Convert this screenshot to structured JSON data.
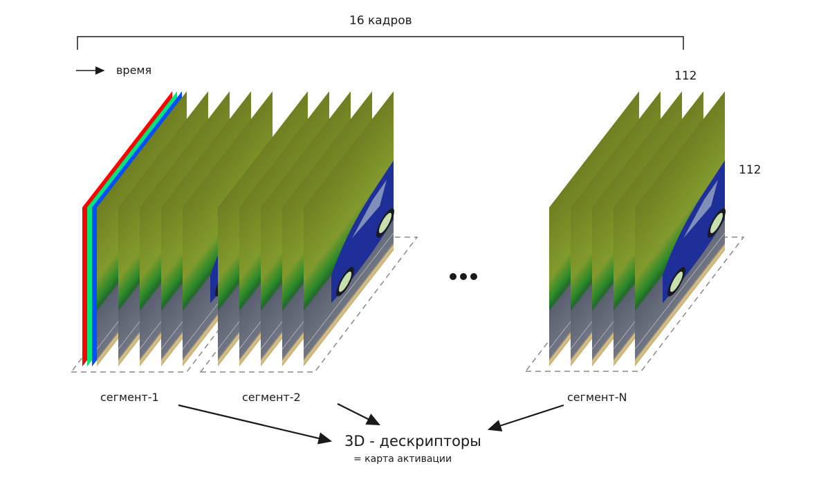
{
  "header": {
    "frames_label": "16 кадров",
    "time_label": "время"
  },
  "dimensions": {
    "width_label": "112",
    "height_label": "112"
  },
  "ellipsis": "•••",
  "segments": [
    {
      "label": "сегмент-1",
      "frames": 5,
      "rgb_channels": true
    },
    {
      "label": "сегмент-2",
      "frames": 5,
      "rgb_channels": false
    },
    {
      "label": "сегмент-N",
      "frames": 5,
      "rgb_channels": false
    }
  ],
  "output": {
    "title": "3D - дескрипторы",
    "subtitle": "= карта активации"
  },
  "colors": {
    "red_channel": "#ff0000",
    "green_channel": "#00e676",
    "blue_channel": "#0050ff",
    "car": "#1e2f9a",
    "foliage": "#7a8a2a",
    "road": "#6b6f7a"
  }
}
